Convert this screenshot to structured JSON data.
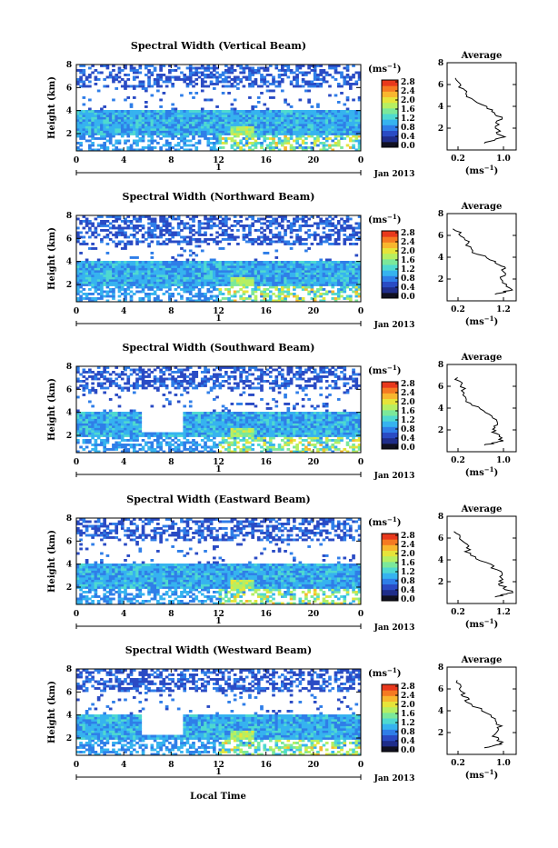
{
  "figure": {
    "bottom_label": "Local Time",
    "colorbar_unit": "(ms",
    "colorbar_unit_exp": "−1",
    "colorbar_unit_close": ")",
    "colorbar_ticks": [
      "0.0",
      "0.4",
      "0.8",
      "1.2",
      "1.6",
      "2.0",
      "2.4",
      "2.8"
    ],
    "date_label": "Jan 2013",
    "day_label": "1",
    "colorbar_colors": [
      "#111122",
      "#1f2d8a",
      "#2a4bc4",
      "#2f7ee8",
      "#36b3ef",
      "#4fd9d0",
      "#7be89a",
      "#b6ef62",
      "#e6e43a",
      "#f8b62e",
      "#f57a22",
      "#e8381c"
    ]
  },
  "chart_data": [
    {
      "type": "heatmap",
      "title": "Spectral Width (Vertical Beam)",
      "ylabel": "Height (km)",
      "xlabel": "Local Time",
      "x_ticks": [
        "0",
        "4",
        "8",
        "12",
        "16",
        "20",
        "0"
      ],
      "y_ticks": [
        "2",
        "4",
        "6",
        "8"
      ],
      "ylim": [
        0.5,
        8
      ],
      "xlim": [
        0,
        24
      ],
      "colorbar_range": [
        0,
        2.8
      ],
      "cloud_top_km": 8.0,
      "cloud_bottom_km": 6.0,
      "gap": [],
      "profile_title": "Average",
      "profile_xlabel": "(ms",
      "profile_xlabel_exp": "−1",
      "profile_xlabel_close": ")",
      "profile_xticks": [
        "0.2",
        "1.0"
      ],
      "profile_yticks": [
        "2",
        "4",
        "6",
        "8"
      ],
      "profile": [
        [
          0.15,
          6.6
        ],
        [
          0.3,
          5.6
        ],
        [
          0.35,
          4.9
        ],
        [
          0.8,
          3.8
        ],
        [
          1.0,
          3.0
        ],
        [
          0.9,
          2.0
        ],
        [
          1.05,
          1.2
        ],
        [
          0.7,
          0.6
        ]
      ]
    },
    {
      "type": "heatmap",
      "title": "Spectral Width (Northward Beam)",
      "ylabel": "Height (km)",
      "xlabel": "Local Time",
      "x_ticks": [
        "0",
        "4",
        "8",
        "12",
        "16",
        "20",
        "0"
      ],
      "y_ticks": [
        "2",
        "4",
        "6",
        "8"
      ],
      "ylim": [
        0.5,
        8
      ],
      "xlim": [
        0,
        24
      ],
      "colorbar_range": [
        0,
        2.8
      ],
      "cloud_top_km": 8.0,
      "cloud_bottom_km": 5.5,
      "gap": [],
      "profile_title": "Average",
      "profile_xlabel": "(ms",
      "profile_xlabel_exp": "−1",
      "profile_xlabel_close": ")",
      "profile_xticks": [
        "0.2",
        "1.2"
      ],
      "profile_yticks": [
        "2",
        "4",
        "6",
        "8"
      ],
      "profile": [
        [
          0.15,
          6.6
        ],
        [
          0.35,
          5.6
        ],
        [
          0.45,
          4.6
        ],
        [
          0.9,
          3.6
        ],
        [
          1.1,
          3.0
        ],
        [
          1.0,
          2.0
        ],
        [
          1.2,
          1.0
        ],
        [
          0.9,
          0.6
        ]
      ]
    },
    {
      "type": "heatmap",
      "title": "Spectral Width (Southward Beam)",
      "ylabel": "Height (km)",
      "xlabel": "Local Time",
      "x_ticks": [
        "0",
        "4",
        "8",
        "12",
        "16",
        "20",
        "0"
      ],
      "y_ticks": [
        "2",
        "4",
        "6",
        "8"
      ],
      "ylim": [
        0.5,
        8
      ],
      "xlim": [
        0,
        24
      ],
      "colorbar_range": [
        0,
        2.8
      ],
      "cloud_top_km": 8.0,
      "cloud_bottom_km": 6.0,
      "gap": [
        5.5,
        9.0
      ],
      "profile_title": "Average",
      "profile_xlabel": "(ms",
      "profile_xlabel_exp": "−1",
      "profile_xlabel_close": ")",
      "profile_xticks": [
        "0.2",
        "1.0"
      ],
      "profile_yticks": [
        "2",
        "4",
        "6",
        "8"
      ],
      "profile": [
        [
          0.15,
          6.8
        ],
        [
          0.3,
          5.8
        ],
        [
          0.4,
          4.6
        ],
        [
          0.75,
          3.6
        ],
        [
          0.95,
          2.6
        ],
        [
          0.9,
          1.8
        ],
        [
          1.05,
          1.0
        ],
        [
          0.7,
          0.6
        ]
      ]
    },
    {
      "type": "heatmap",
      "title": "Spectral Width (Eastward Beam)",
      "ylabel": "Height (km)",
      "xlabel": "Local Time",
      "x_ticks": [
        "0",
        "4",
        "8",
        "12",
        "16",
        "20",
        "0"
      ],
      "y_ticks": [
        "2",
        "4",
        "6",
        "8"
      ],
      "ylim": [
        0.5,
        8
      ],
      "xlim": [
        0,
        24
      ],
      "colorbar_range": [
        0,
        2.8
      ],
      "cloud_top_km": 8.0,
      "cloud_bottom_km": 6.0,
      "gap": [],
      "profile_title": "Average",
      "profile_xlabel": "(ms",
      "profile_xlabel_exp": "−1",
      "profile_xlabel_close": ")",
      "profile_xticks": [
        "0.2",
        "1.2"
      ],
      "profile_yticks": [
        "2",
        "4",
        "6",
        "8"
      ],
      "profile": [
        [
          0.15,
          6.6
        ],
        [
          0.35,
          5.6
        ],
        [
          0.4,
          4.6
        ],
        [
          0.8,
          3.6
        ],
        [
          1.05,
          2.6
        ],
        [
          1.0,
          1.8
        ],
        [
          1.2,
          1.0
        ],
        [
          0.9,
          0.6
        ]
      ]
    },
    {
      "type": "heatmap",
      "title": "Spectral Width (Westward Beam)",
      "ylabel": "Height (km)",
      "xlabel": "Local Time",
      "x_ticks": [
        "0",
        "4",
        "8",
        "12",
        "16",
        "20",
        "0"
      ],
      "y_ticks": [
        "2",
        "4",
        "6",
        "8"
      ],
      "ylim": [
        0.5,
        8
      ],
      "xlim": [
        0,
        24
      ],
      "colorbar_range": [
        0,
        2.8
      ],
      "cloud_top_km": 8.0,
      "cloud_bottom_km": 6.0,
      "gap": [
        5.5,
        9.0
      ],
      "profile_title": "Average",
      "profile_xlabel": "(ms",
      "profile_xlabel_exp": "−1",
      "profile_xlabel_close": ")",
      "profile_xticks": [
        "0.2",
        "1.0"
      ],
      "profile_yticks": [
        "2",
        "4",
        "6",
        "8"
      ],
      "profile": [
        [
          0.15,
          6.8
        ],
        [
          0.3,
          5.6
        ],
        [
          0.4,
          4.8
        ],
        [
          0.8,
          3.6
        ],
        [
          1.0,
          2.6
        ],
        [
          0.85,
          1.8
        ],
        [
          1.05,
          1.0
        ],
        [
          0.7,
          0.6
        ]
      ]
    }
  ]
}
